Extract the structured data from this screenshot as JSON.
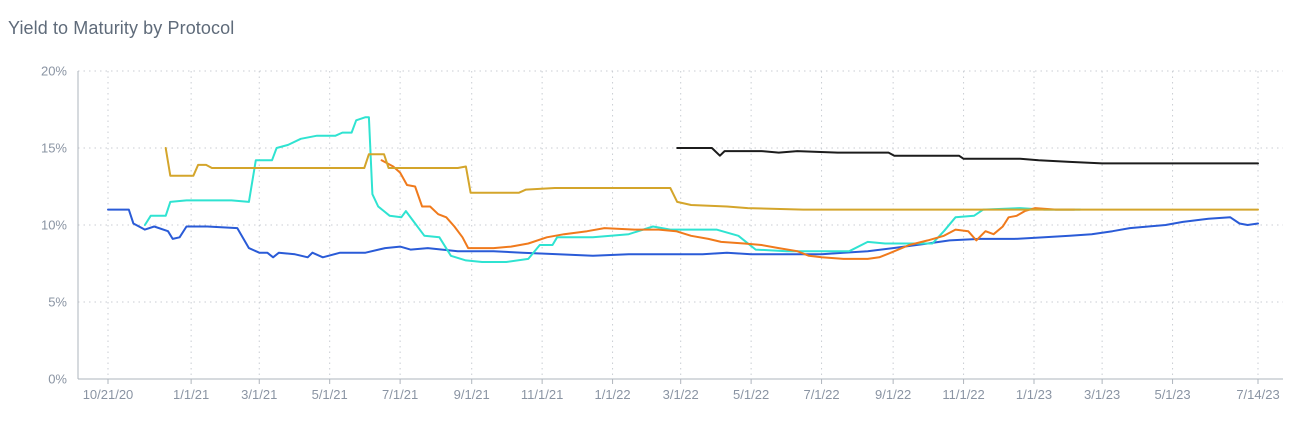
{
  "title": "Yield to Maturity by Protocol",
  "chart_data": {
    "type": "line",
    "title": "Yield to Maturity by Protocol",
    "xlabel": "",
    "ylabel": "",
    "ylim": [
      0,
      20
    ],
    "y_ticks": [
      "0%",
      "5%",
      "10%",
      "15%",
      "20%"
    ],
    "x_range": [
      "2020-10-21",
      "2023-07-14"
    ],
    "x_ticks": [
      {
        "date": "2020-10-21",
        "label": "10/21/20"
      },
      {
        "date": "2021-01-01",
        "label": "1/1/21"
      },
      {
        "date": "2021-03-01",
        "label": "3/1/21"
      },
      {
        "date": "2021-05-01",
        "label": "5/1/21"
      },
      {
        "date": "2021-07-01",
        "label": "7/1/21"
      },
      {
        "date": "2021-09-01",
        "label": "9/1/21"
      },
      {
        "date": "2021-11-01",
        "label": "11/1/21"
      },
      {
        "date": "2022-01-01",
        "label": "1/1/22"
      },
      {
        "date": "2022-03-01",
        "label": "3/1/22"
      },
      {
        "date": "2022-05-01",
        "label": "5/1/22"
      },
      {
        "date": "2022-07-01",
        "label": "7/1/22"
      },
      {
        "date": "2022-09-01",
        "label": "9/1/22"
      },
      {
        "date": "2022-11-01",
        "label": "11/1/22"
      },
      {
        "date": "2023-01-01",
        "label": "1/1/23"
      },
      {
        "date": "2023-03-01",
        "label": "3/1/23"
      },
      {
        "date": "2023-05-01",
        "label": "5/1/23"
      },
      {
        "date": "2023-07-14",
        "label": "7/14/23"
      }
    ],
    "grid": true,
    "legend": "none",
    "series": [
      {
        "color": "#2a5bd7",
        "points": [
          [
            "2020-10-21",
            11.0
          ],
          [
            "2020-11-08",
            11.0
          ],
          [
            "2020-11-12",
            10.1
          ],
          [
            "2020-11-22",
            9.7
          ],
          [
            "2020-11-30",
            9.9
          ],
          [
            "2020-12-12",
            9.6
          ],
          [
            "2020-12-16",
            9.1
          ],
          [
            "2020-12-22",
            9.2
          ],
          [
            "2020-12-28",
            9.9
          ],
          [
            "2021-01-15",
            9.9
          ],
          [
            "2021-02-10",
            9.8
          ],
          [
            "2021-02-20",
            8.5
          ],
          [
            "2021-03-01",
            8.2
          ],
          [
            "2021-03-08",
            8.2
          ],
          [
            "2021-03-13",
            7.9
          ],
          [
            "2021-03-18",
            8.2
          ],
          [
            "2021-04-01",
            8.1
          ],
          [
            "2021-04-12",
            7.9
          ],
          [
            "2021-04-16",
            8.2
          ],
          [
            "2021-04-25",
            7.9
          ],
          [
            "2021-05-10",
            8.2
          ],
          [
            "2021-06-01",
            8.2
          ],
          [
            "2021-06-18",
            8.5
          ],
          [
            "2021-07-01",
            8.6
          ],
          [
            "2021-07-10",
            8.4
          ],
          [
            "2021-07-25",
            8.5
          ],
          [
            "2021-08-20",
            8.3
          ],
          [
            "2021-09-01",
            8.3
          ],
          [
            "2021-09-20",
            8.3
          ],
          [
            "2021-10-15",
            8.2
          ],
          [
            "2021-11-15",
            8.1
          ],
          [
            "2021-12-15",
            8.0
          ],
          [
            "2022-01-15",
            8.1
          ],
          [
            "2022-02-15",
            8.1
          ],
          [
            "2022-03-01",
            8.1
          ],
          [
            "2022-03-20",
            8.1
          ],
          [
            "2022-04-10",
            8.2
          ],
          [
            "2022-05-01",
            8.1
          ],
          [
            "2022-06-01",
            8.1
          ],
          [
            "2022-07-01",
            8.1
          ],
          [
            "2022-07-20",
            8.2
          ],
          [
            "2022-08-10",
            8.3
          ],
          [
            "2022-09-01",
            8.5
          ],
          [
            "2022-10-01",
            8.8
          ],
          [
            "2022-10-20",
            9.0
          ],
          [
            "2022-11-15",
            9.1
          ],
          [
            "2022-12-15",
            9.1
          ],
          [
            "2023-01-10",
            9.2
          ],
          [
            "2023-02-01",
            9.3
          ],
          [
            "2023-02-20",
            9.4
          ],
          [
            "2023-03-10",
            9.6
          ],
          [
            "2023-03-25",
            9.8
          ],
          [
            "2023-04-10",
            9.9
          ],
          [
            "2023-04-25",
            10.0
          ],
          [
            "2023-05-10",
            10.2
          ],
          [
            "2023-06-01",
            10.4
          ],
          [
            "2023-06-20",
            10.5
          ],
          [
            "2023-06-28",
            10.1
          ],
          [
            "2023-07-05",
            10.0
          ],
          [
            "2023-07-14",
            10.1
          ]
        ]
      },
      {
        "color": "#2fe3d1",
        "points": [
          [
            "2020-11-22",
            10.0
          ],
          [
            "2020-11-27",
            10.6
          ],
          [
            "2020-12-10",
            10.6
          ],
          [
            "2020-12-14",
            11.5
          ],
          [
            "2020-12-28",
            11.6
          ],
          [
            "2021-01-20",
            11.6
          ],
          [
            "2021-02-05",
            11.6
          ],
          [
            "2021-02-20",
            11.5
          ],
          [
            "2021-02-26",
            14.2
          ],
          [
            "2021-03-12",
            14.2
          ],
          [
            "2021-03-16",
            15.0
          ],
          [
            "2021-03-26",
            15.2
          ],
          [
            "2021-04-06",
            15.6
          ],
          [
            "2021-04-20",
            15.8
          ],
          [
            "2021-05-06",
            15.8
          ],
          [
            "2021-05-12",
            16.0
          ],
          [
            "2021-05-20",
            16.0
          ],
          [
            "2021-05-24",
            16.8
          ],
          [
            "2021-06-01",
            17.0
          ],
          [
            "2021-06-04",
            17.0
          ],
          [
            "2021-06-07",
            12.0
          ],
          [
            "2021-06-12",
            11.2
          ],
          [
            "2021-06-22",
            10.6
          ],
          [
            "2021-07-02",
            10.5
          ],
          [
            "2021-07-06",
            10.9
          ],
          [
            "2021-07-12",
            10.3
          ],
          [
            "2021-07-22",
            9.3
          ],
          [
            "2021-08-04",
            9.2
          ],
          [
            "2021-08-14",
            8.0
          ],
          [
            "2021-08-27",
            7.7
          ],
          [
            "2021-09-10",
            7.6
          ],
          [
            "2021-10-01",
            7.6
          ],
          [
            "2021-10-20",
            7.8
          ],
          [
            "2021-10-30",
            8.7
          ],
          [
            "2021-11-10",
            8.7
          ],
          [
            "2021-11-14",
            9.2
          ],
          [
            "2021-12-15",
            9.2
          ],
          [
            "2022-01-15",
            9.4
          ],
          [
            "2022-02-05",
            9.9
          ],
          [
            "2022-02-20",
            9.7
          ],
          [
            "2022-04-01",
            9.7
          ],
          [
            "2022-04-20",
            9.3
          ],
          [
            "2022-05-05",
            8.4
          ],
          [
            "2022-06-01",
            8.3
          ],
          [
            "2022-07-01",
            8.3
          ],
          [
            "2022-07-25",
            8.3
          ],
          [
            "2022-08-10",
            8.9
          ],
          [
            "2022-08-25",
            8.8
          ],
          [
            "2022-10-05",
            8.8
          ],
          [
            "2022-10-15",
            9.6
          ],
          [
            "2022-10-25",
            10.5
          ],
          [
            "2022-11-10",
            10.6
          ],
          [
            "2022-11-18",
            11.0
          ],
          [
            "2022-12-20",
            11.1
          ],
          [
            "2023-01-10",
            11.0
          ],
          [
            "2023-02-10",
            11.0
          ]
        ]
      },
      {
        "color": "#f07a1c",
        "points": [
          [
            "2021-06-15",
            14.2
          ],
          [
            "2021-06-25",
            13.8
          ],
          [
            "2021-07-01",
            13.4
          ],
          [
            "2021-07-07",
            12.6
          ],
          [
            "2021-07-14",
            12.5
          ],
          [
            "2021-07-20",
            11.2
          ],
          [
            "2021-07-27",
            11.2
          ],
          [
            "2021-08-03",
            10.7
          ],
          [
            "2021-08-10",
            10.5
          ],
          [
            "2021-08-17",
            9.9
          ],
          [
            "2021-08-24",
            9.2
          ],
          [
            "2021-08-29",
            8.5
          ],
          [
            "2021-09-20",
            8.5
          ],
          [
            "2021-10-05",
            8.6
          ],
          [
            "2021-10-20",
            8.8
          ],
          [
            "2021-11-05",
            9.2
          ],
          [
            "2021-11-20",
            9.4
          ],
          [
            "2021-12-10",
            9.6
          ],
          [
            "2021-12-25",
            9.8
          ],
          [
            "2022-01-20",
            9.7
          ],
          [
            "2022-02-10",
            9.7
          ],
          [
            "2022-02-25",
            9.6
          ],
          [
            "2022-03-10",
            9.3
          ],
          [
            "2022-03-25",
            9.1
          ],
          [
            "2022-04-05",
            8.9
          ],
          [
            "2022-04-25",
            8.8
          ],
          [
            "2022-05-10",
            8.7
          ],
          [
            "2022-05-25",
            8.5
          ],
          [
            "2022-06-10",
            8.3
          ],
          [
            "2022-06-20",
            8.0
          ],
          [
            "2022-07-01",
            7.9
          ],
          [
            "2022-07-20",
            7.8
          ],
          [
            "2022-08-10",
            7.8
          ],
          [
            "2022-08-20",
            7.9
          ],
          [
            "2022-08-30",
            8.2
          ],
          [
            "2022-09-15",
            8.7
          ],
          [
            "2022-10-01",
            9.0
          ],
          [
            "2022-10-15",
            9.3
          ],
          [
            "2022-10-25",
            9.7
          ],
          [
            "2022-11-05",
            9.6
          ],
          [
            "2022-11-12",
            9.0
          ],
          [
            "2022-11-20",
            9.6
          ],
          [
            "2022-11-27",
            9.4
          ],
          [
            "2022-12-05",
            9.9
          ],
          [
            "2022-12-10",
            10.5
          ],
          [
            "2022-12-17",
            10.6
          ],
          [
            "2022-12-24",
            10.9
          ],
          [
            "2023-01-02",
            11.1
          ],
          [
            "2023-01-20",
            11.0
          ],
          [
            "2023-02-05",
            11.0
          ]
        ]
      },
      {
        "color": "#d4a52b",
        "points": [
          [
            "2020-12-10",
            15.0
          ],
          [
            "2020-12-14",
            13.2
          ],
          [
            "2020-12-22",
            13.2
          ],
          [
            "2021-01-03",
            13.2
          ],
          [
            "2021-01-07",
            13.9
          ],
          [
            "2021-01-14",
            13.9
          ],
          [
            "2021-01-19",
            13.7
          ],
          [
            "2021-05-31",
            13.7
          ],
          [
            "2021-06-04",
            14.6
          ],
          [
            "2021-06-17",
            14.6
          ],
          [
            "2021-06-21",
            13.7
          ],
          [
            "2021-08-20",
            13.7
          ],
          [
            "2021-08-27",
            13.8
          ],
          [
            "2021-08-31",
            12.1
          ],
          [
            "2021-10-12",
            12.1
          ],
          [
            "2021-10-18",
            12.3
          ],
          [
            "2021-11-12",
            12.4
          ],
          [
            "2022-02-20",
            12.4
          ],
          [
            "2022-02-26",
            11.5
          ],
          [
            "2022-03-10",
            11.3
          ],
          [
            "2022-04-10",
            11.2
          ],
          [
            "2022-04-28",
            11.1
          ],
          [
            "2022-06-15",
            11.0
          ],
          [
            "2023-07-14",
            11.0
          ]
        ]
      },
      {
        "color": "#1c1c1c",
        "points": [
          [
            "2022-02-26",
            15.0
          ],
          [
            "2022-03-15",
            15.0
          ],
          [
            "2022-03-28",
            15.0
          ],
          [
            "2022-04-04",
            14.5
          ],
          [
            "2022-04-08",
            14.8
          ],
          [
            "2022-05-10",
            14.8
          ],
          [
            "2022-05-25",
            14.7
          ],
          [
            "2022-06-10",
            14.8
          ],
          [
            "2022-07-15",
            14.7
          ],
          [
            "2022-08-28",
            14.7
          ],
          [
            "2022-09-02",
            14.5
          ],
          [
            "2022-10-28",
            14.5
          ],
          [
            "2022-11-01",
            14.3
          ],
          [
            "2022-12-20",
            14.3
          ],
          [
            "2023-01-05",
            14.2
          ],
          [
            "2023-02-01",
            14.1
          ],
          [
            "2023-03-01",
            14.0
          ],
          [
            "2023-05-01",
            14.0
          ],
          [
            "2023-06-01",
            14.0
          ],
          [
            "2023-07-14",
            14.0
          ]
        ]
      }
    ]
  }
}
